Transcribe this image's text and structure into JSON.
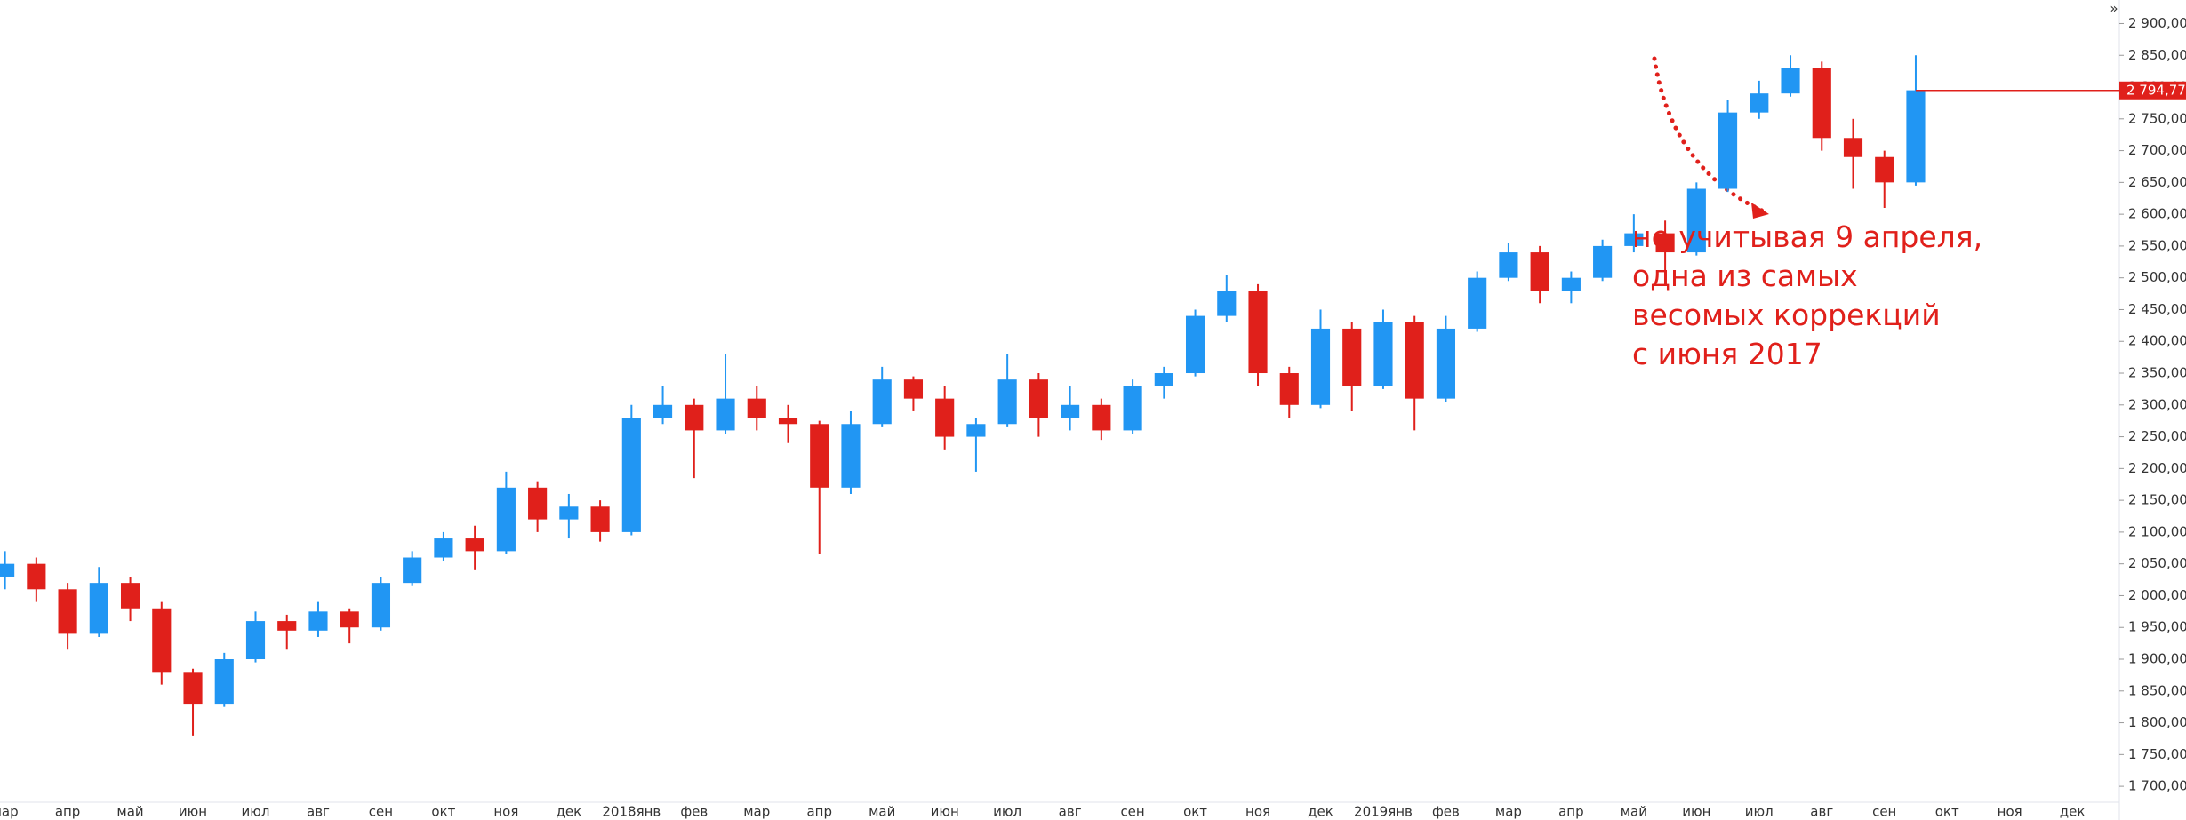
{
  "chart_data": {
    "type": "candlestick",
    "categories": [
      "мар",
      null,
      "апр",
      null,
      "май",
      null,
      "июн",
      null,
      "июл",
      null,
      "авг",
      null,
      "сен",
      null,
      "окт",
      null,
      "ноя",
      null,
      "дек",
      null,
      "2018янв",
      null,
      "фев",
      null,
      "мар",
      null,
      "апр",
      null,
      "май",
      null,
      "июн",
      null,
      "июл",
      null,
      "авг",
      null,
      "сен",
      null,
      "окт",
      null,
      "ноя",
      null,
      "дек",
      null,
      "2019янв",
      null,
      "фев",
      null,
      "мар",
      null,
      "апр",
      null,
      "май",
      null,
      "июн",
      null,
      "июл",
      null,
      "авг",
      null,
      "сен",
      null,
      "окт",
      null,
      "ноя",
      null,
      "дек",
      null
    ],
    "open": [
      2030,
      2050,
      2010,
      1940,
      2020,
      1980,
      1880,
      1830,
      1900,
      1960,
      1945,
      1975,
      1950,
      2020,
      2060,
      2090,
      2070,
      2170,
      2120,
      2140,
      2100,
      2280,
      2300,
      2260,
      2310,
      2280,
      2270,
      2170,
      2270,
      2340,
      2310,
      2250,
      2270,
      2340,
      2280,
      2300,
      2260,
      2330,
      2350,
      2440,
      2480,
      2350,
      2300,
      2420,
      2330,
      2430,
      2310,
      2420,
      2500,
      2540,
      2480,
      2500,
      2550,
      2570,
      2540,
      2640,
      2760,
      2790,
      2830,
      2720,
      2690,
      2650,
      null,
      null,
      null,
      null,
      null,
      null
    ],
    "high": [
      2070,
      2060,
      2020,
      2045,
      2030,
      1990,
      1885,
      1910,
      1975,
      1970,
      1990,
      1980,
      2030,
      2070,
      2100,
      2110,
      2195,
      2180,
      2160,
      2150,
      2300,
      2330,
      2310,
      2380,
      2330,
      2300,
      2275,
      2290,
      2360,
      2345,
      2330,
      2280,
      2380,
      2350,
      2330,
      2310,
      2340,
      2360,
      2450,
      2505,
      2490,
      2360,
      2450,
      2430,
      2450,
      2440,
      2440,
      2510,
      2555,
      2550,
      2510,
      2560,
      2600,
      2590,
      2650,
      2780,
      2810,
      2850,
      2840,
      2750,
      2700,
      2850,
      null,
      null,
      null,
      null,
      null,
      null
    ],
    "low": [
      2010,
      1990,
      1915,
      1935,
      1960,
      1860,
      1780,
      1825,
      1895,
      1915,
      1935,
      1925,
      1945,
      2015,
      2055,
      2040,
      2065,
      2100,
      2090,
      2085,
      2095,
      2270,
      2185,
      2255,
      2260,
      2240,
      2065,
      2160,
      2265,
      2290,
      2230,
      2195,
      2265,
      2250,
      2260,
      2245,
      2255,
      2310,
      2345,
      2430,
      2330,
      2280,
      2295,
      2290,
      2325,
      2260,
      2305,
      2415,
      2495,
      2460,
      2460,
      2495,
      2540,
      2510,
      2535,
      2635,
      2750,
      2785,
      2700,
      2640,
      2610,
      2645,
      null,
      null,
      null,
      null,
      null,
      null
    ],
    "close": [
      2050,
      2010,
      1940,
      2020,
      1980,
      1880,
      1830,
      1900,
      1960,
      1945,
      1975,
      1950,
      2020,
      2060,
      2090,
      2070,
      2170,
      2120,
      2140,
      2100,
      2280,
      2300,
      2260,
      2310,
      2280,
      2270,
      2170,
      2270,
      2340,
      2310,
      2250,
      2270,
      2340,
      2280,
      2300,
      2260,
      2330,
      2350,
      2440,
      2480,
      2350,
      2300,
      2420,
      2330,
      2430,
      2310,
      2420,
      2500,
      2540,
      2480,
      2500,
      2550,
      2570,
      2540,
      2640,
      2760,
      2790,
      2830,
      2720,
      2690,
      2650,
      2795,
      null,
      null,
      null,
      null,
      null,
      null
    ],
    "up_color": "#2196f3",
    "down_color": "#e0201b",
    "ylim": [
      1675,
      2937
    ],
    "yticks": [
      {
        "value": 1700,
        "label": "1 700,00"
      },
      {
        "value": 1750,
        "label": "1 750,00"
      },
      {
        "value": 1800,
        "label": "1 800,00"
      },
      {
        "value": 1850,
        "label": "1 850,00"
      },
      {
        "value": 1900,
        "label": "1 900,00"
      },
      {
        "value": 1950,
        "label": "1 950,00"
      },
      {
        "value": 2000,
        "label": "2 000,00"
      },
      {
        "value": 2050,
        "label": "2 050,00"
      },
      {
        "value": 2100,
        "label": "2 100,00"
      },
      {
        "value": 2150,
        "label": "2 150,00"
      },
      {
        "value": 2200,
        "label": "2 200,00"
      },
      {
        "value": 2250,
        "label": "2 250,00"
      },
      {
        "value": 2300,
        "label": "2 300,00"
      },
      {
        "value": 2350,
        "label": "2 350,00"
      },
      {
        "value": 2400,
        "label": "2 400,00"
      },
      {
        "value": 2450,
        "label": "2 450,00"
      },
      {
        "value": 2500,
        "label": "2 500,00"
      },
      {
        "value": 2550,
        "label": "2 550,00"
      },
      {
        "value": 2600,
        "label": "2 600,00"
      },
      {
        "value": 2650,
        "label": "2 650,00"
      },
      {
        "value": 2700,
        "label": "2 700,00"
      },
      {
        "value": 2750,
        "label": "2 750,00"
      },
      {
        "value": 2800,
        "label": "2 800,00"
      },
      {
        "value": 2850,
        "label": "2 850,00"
      },
      {
        "value": 2900,
        "label": "2 900,00"
      }
    ],
    "last_price": {
      "value": 2794.77,
      "label": "2 794,77"
    },
    "annotation": [
      "не учитывая 9 апреля,",
      "одна из самых",
      "весомых коррекций",
      "с июня 2017"
    ]
  }
}
